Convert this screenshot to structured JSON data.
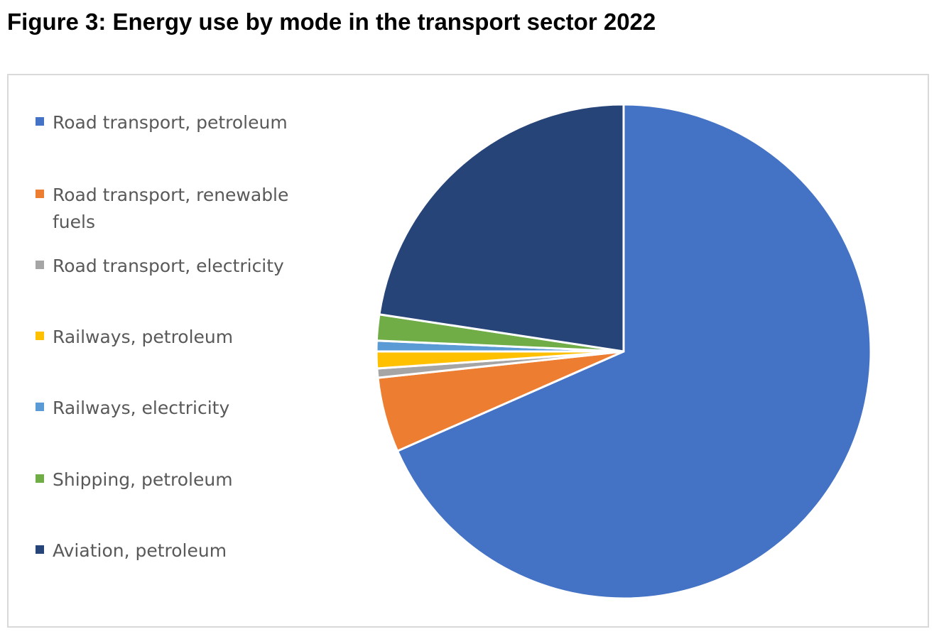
{
  "figure": {
    "title": "Figure 3: Energy use by mode in the transport sector 2022"
  },
  "chart_data": {
    "type": "pie",
    "title": "",
    "start_angle_deg": 0,
    "direction": "clockwise",
    "legend_position": "left",
    "categories": [
      "Road transport, petroleum",
      "Road transport, renewable fuels",
      "Road transport, electricity",
      "Railways, petroleum",
      "Railways, electricity",
      "Shipping, petroleum",
      "Aviation, petroleum"
    ],
    "values": [
      68.4,
      4.9,
      0.6,
      1.1,
      0.7,
      1.7,
      22.6
    ],
    "colors": [
      "#4472C4",
      "#ED7D31",
      "#A5A5A5",
      "#FFC000",
      "#5B9BD5",
      "#70AD47",
      "#264478"
    ],
    "slice_border_color": "#ffffff"
  }
}
